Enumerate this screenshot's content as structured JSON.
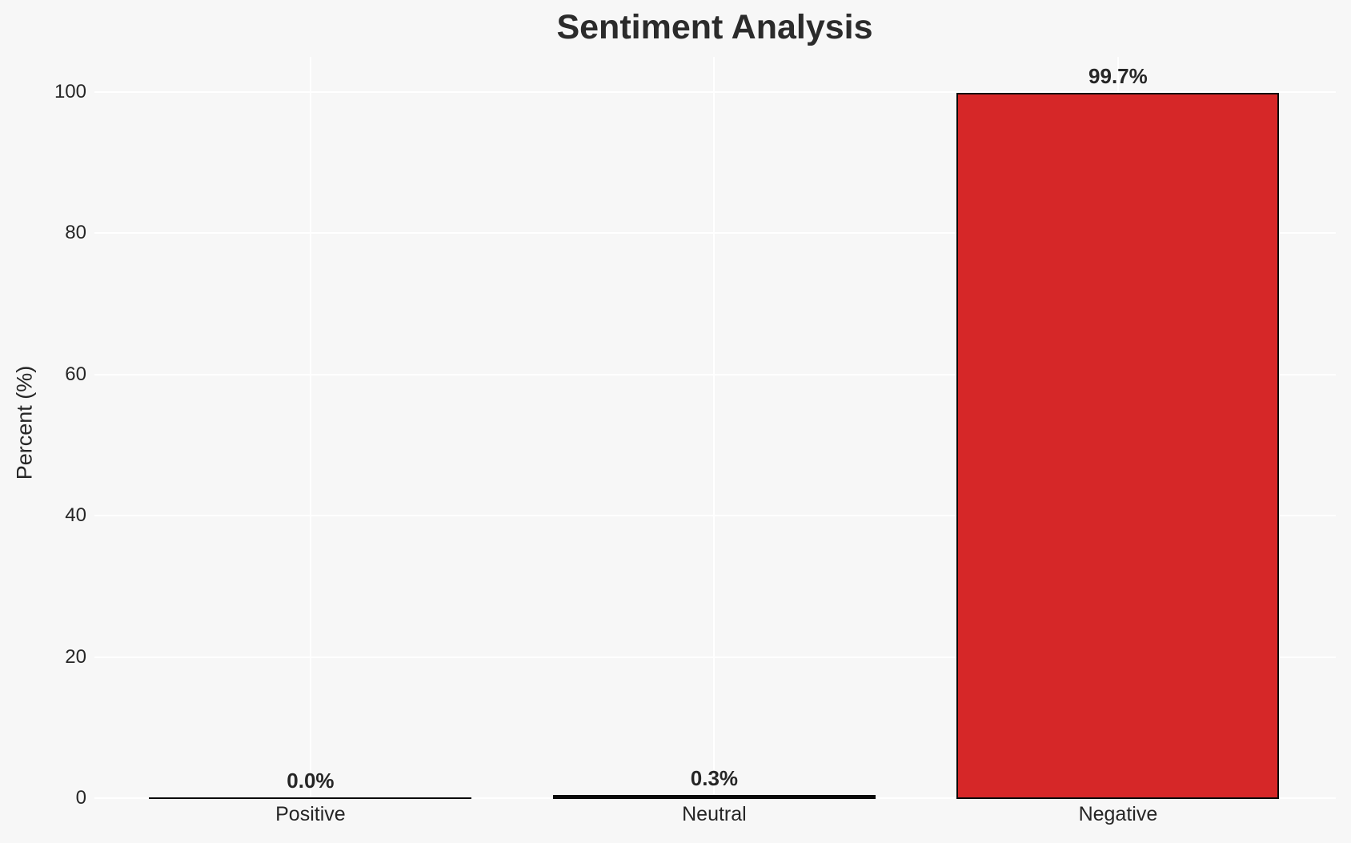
{
  "chart_data": {
    "type": "bar",
    "title": "Sentiment Analysis",
    "xlabel": "",
    "ylabel": "Percent (%)",
    "categories": [
      "Positive",
      "Neutral",
      "Negative"
    ],
    "values": [
      0.0,
      0.3,
      99.7
    ],
    "value_labels": [
      "0.0%",
      "0.3%",
      "99.7%"
    ],
    "yticks": [
      0,
      20,
      40,
      60,
      80,
      100
    ],
    "ylim": [
      0,
      105
    ],
    "grid": true,
    "legend": "none",
    "colors": {
      "background": "#f7f7f7",
      "gridline": "#ffffff",
      "bar_edge": "#0a0a0a",
      "bar_fills": [
        "#0a0a0a",
        "#0a0a0a",
        "#d62728"
      ],
      "text": "#262626",
      "title_text": "#2b2b2b"
    }
  }
}
